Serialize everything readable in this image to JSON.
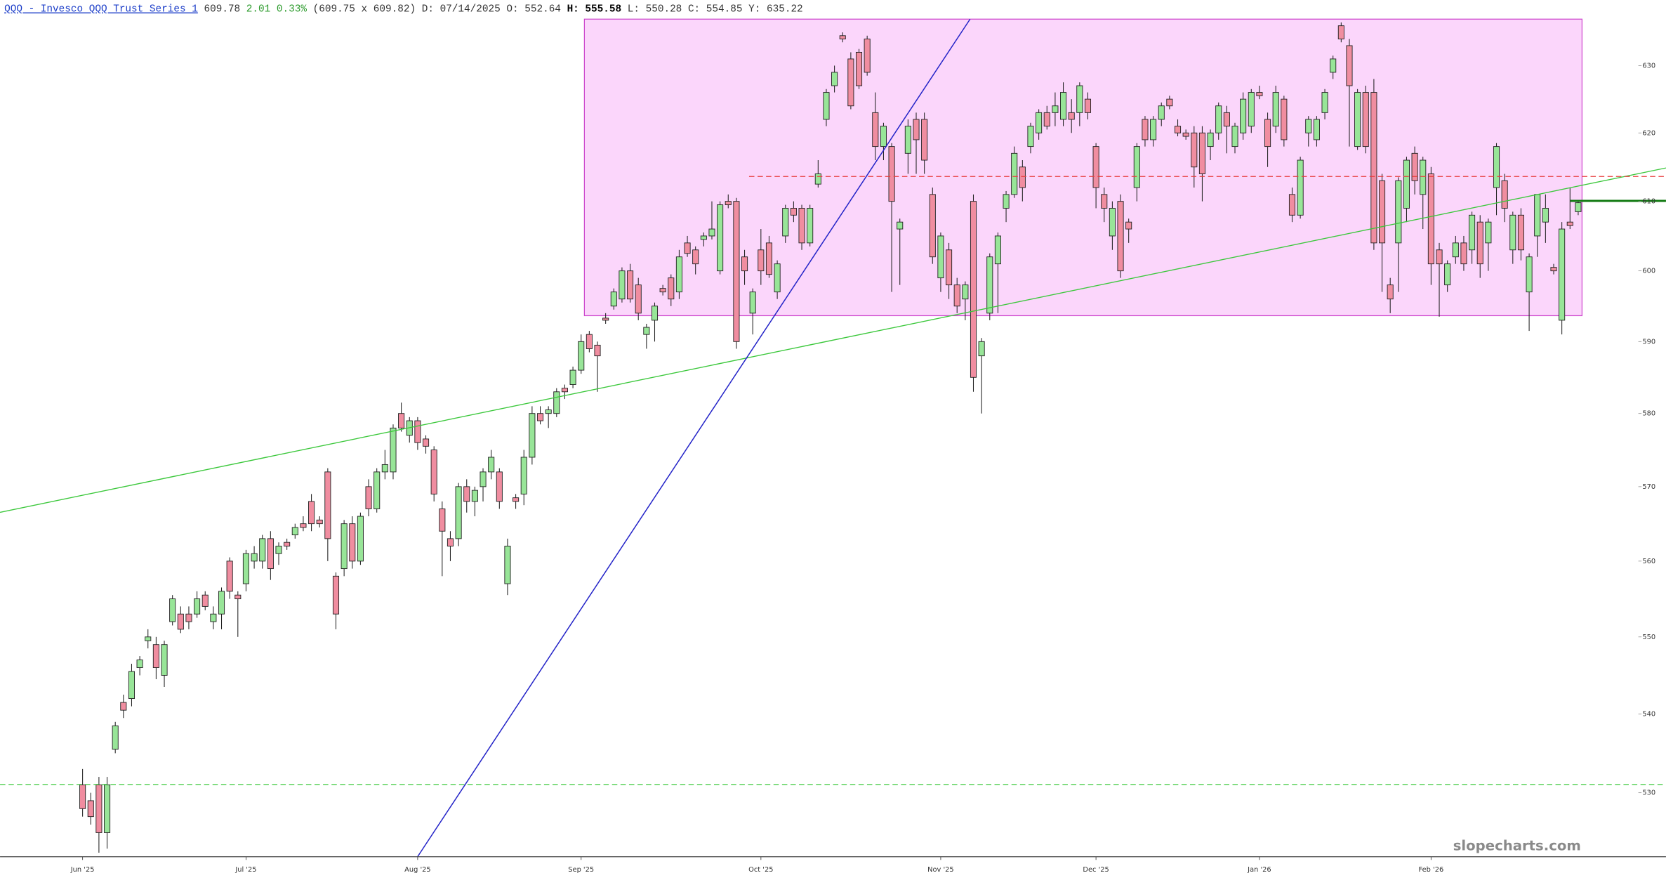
{
  "chart_data": {
    "type": "candlestick",
    "header": {
      "symbol": "QQQ - Invesco QQQ Trust Series 1",
      "last": "609.78",
      "change": "2.01 0.33%",
      "bid_ask": "(609.75 x 609.82)",
      "date": "D: 07/14/2025",
      "open": "O: 552.64",
      "high_label": "H:",
      "high": "555.58",
      "low": "L: 550.28",
      "close": "C: 554.85",
      "y": "Y: 635.22"
    },
    "watermark": "slopecharts.com",
    "log": true,
    "grid": false,
    "up_color": "#98e598",
    "down_color": "#f08da0",
    "xlim": [
      -10.1,
      190.1
    ],
    "xticks": [
      {
        "value": 0,
        "label": "Jun '25"
      },
      {
        "value": 20,
        "label": "Jul '25"
      },
      {
        "value": 41,
        "label": "Aug '25"
      },
      {
        "value": 61,
        "label": "Sep '25"
      },
      {
        "value": 83,
        "label": "Oct '25"
      },
      {
        "value": 105,
        "label": "Nov '25"
      },
      {
        "value": 124,
        "label": "Dec '25"
      },
      {
        "value": 144,
        "label": "Jan '26"
      },
      {
        "value": 165,
        "label": "Feb '26"
      }
    ],
    "ylim": [
      522,
      637
    ],
    "yticks": [
      530,
      540,
      550,
      560,
      570,
      580,
      590,
      600,
      610,
      620,
      630
    ],
    "ohlc": [
      [
        531,
        533,
        527,
        528
      ],
      [
        529,
        530,
        526,
        527
      ],
      [
        531,
        532,
        522.5,
        525
      ],
      [
        525,
        532,
        523,
        531
      ],
      [
        535.5,
        539,
        535,
        538.5
      ],
      [
        541.5,
        542.5,
        539.5,
        540.5
      ],
      [
        542,
        546.5,
        541,
        545.5
      ],
      [
        546,
        547.5,
        545,
        547
      ],
      [
        549.5,
        551,
        548.5,
        550
      ],
      [
        549,
        550,
        544.5,
        546
      ],
      [
        545,
        549.5,
        543.5,
        549
      ],
      [
        552,
        555.5,
        551.5,
        555
      ],
      [
        553,
        554,
        550.5,
        551
      ],
      [
        553,
        554,
        551,
        552
      ],
      [
        553,
        556,
        552.5,
        555
      ],
      [
        555.5,
        556,
        553.5,
        554
      ],
      [
        552,
        554,
        551,
        553
      ],
      [
        553,
        556.5,
        551,
        556
      ],
      [
        560,
        560.5,
        555,
        556
      ],
      [
        555.5,
        556,
        550,
        555
      ],
      [
        557,
        561.5,
        556,
        561
      ],
      [
        560,
        562,
        559,
        561
      ],
      [
        560,
        563.5,
        559,
        563
      ],
      [
        563,
        564,
        557.5,
        559
      ],
      [
        561,
        562.5,
        559.5,
        562
      ],
      [
        562.5,
        563,
        561.5,
        562
      ],
      [
        563.5,
        565,
        563,
        564.5
      ],
      [
        565,
        566,
        564,
        564.5
      ],
      [
        568,
        569,
        564,
        565
      ],
      [
        565.5,
        566,
        564.5,
        565
      ],
      [
        572,
        572.5,
        560,
        563
      ],
      [
        558,
        558.5,
        551,
        553
      ],
      [
        559,
        565.5,
        558,
        565
      ],
      [
        565,
        566,
        559,
        560
      ],
      [
        560,
        566.5,
        559.5,
        566
      ],
      [
        570,
        571,
        566,
        567
      ],
      [
        567,
        572.5,
        566.5,
        572
      ],
      [
        572,
        575,
        571,
        573
      ],
      [
        572,
        578.5,
        571,
        578
      ],
      [
        580,
        581.5,
        577.5,
        578
      ],
      [
        577,
        579.5,
        576,
        579
      ],
      [
        579,
        579.5,
        575,
        576
      ],
      [
        576.5,
        577,
        574.5,
        575.5
      ],
      [
        575,
        575.5,
        568,
        569
      ],
      [
        567,
        568,
        558,
        564
      ],
      [
        563,
        564,
        560,
        562
      ],
      [
        563,
        570.5,
        562,
        570
      ],
      [
        570,
        571,
        566.5,
        568
      ],
      [
        568,
        570,
        566,
        569.5
      ],
      [
        570,
        572.5,
        568,
        572
      ],
      [
        572,
        575,
        571,
        574
      ],
      [
        572,
        572.5,
        567,
        568
      ],
      [
        557,
        563,
        555.5,
        562
      ],
      [
        568.5,
        569,
        567,
        568
      ],
      [
        569,
        575,
        567.5,
        574
      ],
      [
        574,
        581,
        573,
        580
      ],
      [
        580,
        581,
        578.5,
        579
      ],
      [
        580,
        581,
        578,
        580.5
      ],
      [
        580,
        583.5,
        579.5,
        583
      ],
      [
        583.5,
        584,
        582,
        583
      ],
      [
        584,
        586.5,
        583.5,
        586
      ],
      [
        586,
        591,
        585.5,
        590
      ],
      [
        591,
        591.5,
        588.5,
        589
      ],
      [
        589.5,
        590,
        583,
        588
      ],
      [
        593.3,
        594,
        592.5,
        593
      ],
      [
        595,
        597.5,
        594.5,
        597
      ],
      [
        596,
        600.5,
        595.5,
        600
      ],
      [
        600,
        601,
        595.5,
        596
      ],
      [
        598,
        599,
        593,
        594
      ],
      [
        591,
        592.5,
        589,
        592
      ],
      [
        593,
        595.5,
        590,
        595
      ],
      [
        597.5,
        598,
        596.5,
        597
      ],
      [
        599,
        599.5,
        595,
        596
      ],
      [
        597,
        603,
        596,
        602
      ],
      [
        604,
        605,
        602,
        602.5
      ],
      [
        603,
        603.5,
        599.5,
        601
      ],
      [
        604.5,
        605.5,
        603.5,
        605
      ],
      [
        605,
        610,
        604.5,
        606
      ],
      [
        600,
        610,
        599.5,
        609.5
      ],
      [
        610,
        611,
        609,
        609.5
      ],
      [
        610,
        610.5,
        589,
        590
      ],
      [
        602,
        603,
        598,
        600
      ],
      [
        594,
        597.5,
        591,
        597
      ],
      [
        603,
        606,
        598,
        600
      ],
      [
        604,
        605,
        599,
        599.5
      ],
      [
        597,
        601.5,
        596,
        601
      ],
      [
        605,
        609.5,
        604,
        609
      ],
      [
        609,
        610,
        607,
        608
      ],
      [
        609,
        609.5,
        603,
        604
      ],
      [
        604,
        609.5,
        603.5,
        609
      ],
      [
        612.5,
        616,
        612,
        614
      ],
      [
        622,
        626.5,
        621,
        626
      ],
      [
        627,
        630,
        626,
        629
      ],
      [
        634.5,
        635,
        633.5,
        634
      ],
      [
        631,
        632,
        623.5,
        624
      ],
      [
        632,
        632.5,
        626.5,
        627
      ],
      [
        634,
        634.5,
        628.5,
        629
      ],
      [
        623,
        626,
        616,
        618
      ],
      [
        618,
        621.5,
        616,
        621
      ],
      [
        618,
        618.5,
        597,
        610
      ],
      [
        606,
        607.5,
        598,
        607
      ],
      [
        617,
        622,
        614,
        621
      ],
      [
        622,
        623,
        614,
        619
      ],
      [
        622,
        623,
        614,
        616
      ],
      [
        611,
        612,
        601,
        602
      ],
      [
        599,
        605.5,
        597,
        605
      ],
      [
        603,
        604,
        596,
        598
      ],
      [
        598,
        599,
        594,
        595
      ],
      [
        596,
        598.5,
        593,
        598
      ],
      [
        610,
        611,
        583,
        585
      ],
      [
        588,
        590.5,
        580,
        590
      ],
      [
        594,
        602.5,
        593,
        602
      ],
      [
        601,
        605.5,
        594,
        605
      ],
      [
        609,
        611.5,
        607,
        611
      ],
      [
        611,
        618,
        610.5,
        617
      ],
      [
        615,
        616,
        610,
        612
      ],
      [
        618,
        621.5,
        617,
        621
      ],
      [
        620,
        623.5,
        619,
        623
      ],
      [
        623,
        624,
        620.5,
        621
      ],
      [
        623,
        626,
        621,
        624
      ],
      [
        622,
        627.5,
        621,
        626
      ],
      [
        623,
        625,
        620,
        622
      ],
      [
        623,
        627.5,
        621,
        627
      ],
      [
        625,
        626,
        622,
        623
      ],
      [
        618,
        618.5,
        609,
        612
      ],
      [
        611,
        612,
        607,
        609
      ],
      [
        605,
        610,
        603,
        609
      ],
      [
        610,
        611,
        599,
        600
      ],
      [
        607,
        607.5,
        604,
        606
      ],
      [
        612,
        618.5,
        610,
        618
      ],
      [
        622,
        622.5,
        618,
        619
      ],
      [
        619,
        622.5,
        618,
        622
      ],
      [
        622,
        624.5,
        621,
        624
      ],
      [
        625,
        625.5,
        623.5,
        624
      ],
      [
        621,
        622,
        619.5,
        620
      ],
      [
        620,
        620.5,
        619,
        619.5
      ],
      [
        620,
        621,
        612,
        615
      ],
      [
        620,
        621,
        610,
        614
      ],
      [
        618,
        620.5,
        616,
        620
      ],
      [
        620,
        624.5,
        619,
        624
      ],
      [
        623,
        624,
        617,
        621
      ],
      [
        618,
        621.5,
        617,
        621
      ],
      [
        620,
        626,
        619,
        625
      ],
      [
        621,
        626.5,
        620,
        626
      ],
      [
        626,
        627,
        625,
        625.5
      ],
      [
        622,
        623,
        615,
        618
      ],
      [
        621,
        627,
        620,
        626
      ],
      [
        625,
        625.5,
        618,
        619
      ],
      [
        611,
        612,
        607,
        608
      ],
      [
        608,
        616.5,
        607.5,
        616
      ],
      [
        620,
        622.5,
        618,
        622
      ],
      [
        619,
        622.5,
        618,
        622
      ],
      [
        623,
        626.5,
        622,
        626
      ],
      [
        629,
        631.5,
        628,
        631
      ],
      [
        636,
        636.5,
        633.5,
        634
      ],
      [
        633,
        634,
        618,
        627
      ],
      [
        618,
        626.5,
        617.5,
        626
      ],
      [
        626,
        627,
        617,
        618
      ],
      [
        626,
        628,
        603,
        604
      ],
      [
        613,
        614,
        597,
        604
      ],
      [
        598,
        599,
        594,
        596
      ],
      [
        604,
        613.5,
        597,
        613
      ],
      [
        609,
        616.5,
        607,
        616
      ],
      [
        617,
        618,
        611,
        613
      ],
      [
        611,
        616.5,
        606,
        616
      ],
      [
        614,
        615,
        598,
        601
      ],
      [
        603,
        604,
        593.5,
        601
      ],
      [
        598,
        601.5,
        597,
        601
      ],
      [
        602,
        605,
        601,
        604
      ],
      [
        604,
        605,
        600,
        601
      ],
      [
        603,
        608.5,
        601,
        608
      ],
      [
        607,
        608,
        599,
        601
      ],
      [
        604,
        607.5,
        600,
        607
      ],
      [
        612,
        618.5,
        608,
        618
      ],
      [
        613,
        614,
        607,
        609
      ],
      [
        603,
        608.5,
        601,
        608
      ],
      [
        608,
        609,
        601.5,
        603
      ],
      [
        597,
        602.5,
        591.5,
        602
      ],
      [
        605,
        611,
        602,
        611
      ],
      [
        607,
        611,
        604,
        609
      ],
      [
        600.5,
        601,
        599.5,
        600
      ],
      [
        593,
        607,
        591,
        606
      ],
      [
        607,
        612,
        606,
        606.5
      ],
      [
        608.5,
        610,
        608,
        609.8
      ]
    ]
  }
}
